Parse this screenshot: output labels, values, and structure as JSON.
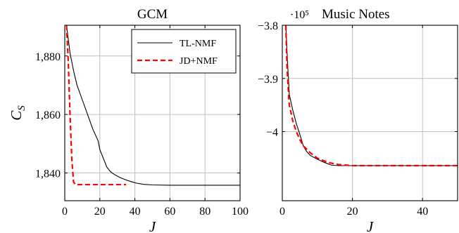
{
  "chart_data": [
    {
      "type": "line",
      "title": "GCM",
      "xlabel": "J",
      "ylabel": "C_S",
      "xlim": [
        0,
        100
      ],
      "ylim": [
        1830.5,
        1890.5
      ],
      "xticks": [
        0,
        20,
        40,
        60,
        80,
        100
      ],
      "xtick_labels": [
        "0",
        "20",
        "40",
        "60",
        "80",
        "100"
      ],
      "yticks": [
        1840,
        1860,
        1880
      ],
      "ytick_labels": [
        "1,840",
        "1,860",
        "1,880"
      ],
      "grid": true,
      "legend": "top-right",
      "series": [
        {
          "name": "TL-NMF",
          "color": "#000000",
          "dash": "solid",
          "x": [
            1,
            3,
            5,
            7,
            10,
            13,
            16,
            19,
            20,
            22,
            24,
            26,
            27,
            28,
            30,
            32,
            35,
            38,
            41,
            45,
            50,
            60,
            70,
            80,
            90,
            100
          ],
          "y": [
            1890.5,
            1881,
            1875,
            1870,
            1865,
            1860,
            1855,
            1851,
            1848,
            1845,
            1842,
            1840.5,
            1840,
            1839.6,
            1838.9,
            1838.3,
            1837.6,
            1837,
            1836.5,
            1836.1,
            1835.9,
            1835.8,
            1835.8,
            1835.8,
            1835.8,
            1835.8
          ]
        },
        {
          "name": "JD+NMF",
          "color": "#ff0000",
          "dash": "dashed",
          "x": [
            1,
            2,
            3,
            4,
            5,
            6,
            7,
            10,
            15,
            20,
            25,
            30,
            35
          ],
          "y": [
            1890.5,
            1878,
            1860,
            1845,
            1837,
            1836,
            1836,
            1836,
            1836,
            1836,
            1836,
            1836,
            1836
          ]
        }
      ]
    },
    {
      "type": "line",
      "title": "Music Notes",
      "scale_label": "·10⁵",
      "xlabel": "J",
      "ylabel": "",
      "xlim": [
        0,
        50
      ],
      "ylim": [
        -4.13,
        -3.8
      ],
      "xticks": [
        0,
        20,
        40
      ],
      "xtick_labels": [
        "0",
        "20",
        "40"
      ],
      "yticks": [
        -3.8,
        -3.9,
        -4
      ],
      "ytick_labels": [
        "−3.8",
        "−3.9",
        "−4"
      ],
      "grid": true,
      "series": [
        {
          "name": "TL-NMF",
          "color": "#000000",
          "dash": "solid",
          "x": [
            1,
            1.5,
            2,
            3,
            4,
            5,
            6,
            7,
            8,
            10,
            12,
            14,
            16,
            20,
            30,
            40,
            50
          ],
          "y": [
            -3.8,
            -3.87,
            -3.93,
            -3.96,
            -3.985,
            -4.005,
            -4.027,
            -4.038,
            -4.045,
            -4.052,
            -4.058,
            -4.063,
            -4.064,
            -4.064,
            -4.064,
            -4.064,
            -4.064
          ]
        },
        {
          "name": "JD+NMF",
          "color": "#ff0000",
          "dash": "dashed",
          "x": [
            1,
            1.3,
            1.7,
            2,
            3,
            4,
            5,
            6,
            8,
            10,
            13,
            16,
            20,
            30,
            40,
            50
          ],
          "y": [
            -3.8,
            -3.87,
            -3.92,
            -3.95,
            -3.98,
            -4,
            -4.015,
            -4.027,
            -4.04,
            -4.05,
            -4.058,
            -4.062,
            -4.064,
            -4.064,
            -4.064,
            -4.064
          ]
        }
      ]
    }
  ]
}
